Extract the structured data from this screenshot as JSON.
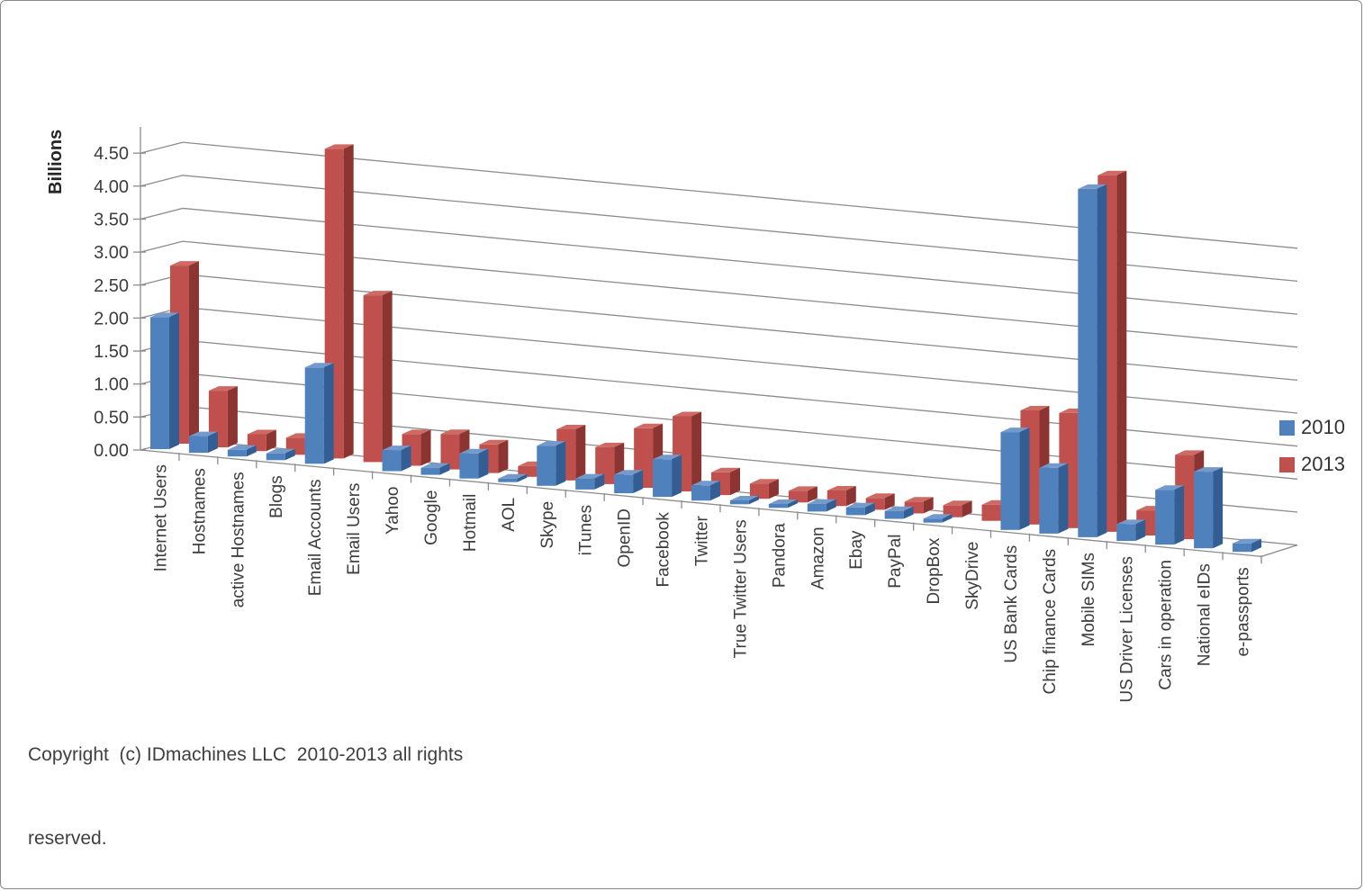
{
  "page": {
    "background": "#ffffff",
    "border_color": "#8a8a8a",
    "grid_color": "#8c8c8c",
    "text_color": "#3d3d3d"
  },
  "chart_data": {
    "type": "bar",
    "variant": "3d-clustered-column",
    "title": "",
    "xlabel": "",
    "ylabel": "Billions",
    "ylim": [
      0,
      4.5
    ],
    "ytick_step": 0.5,
    "ytick_decimals": 2,
    "grid": true,
    "legend_position": "right",
    "categories": [
      "Internet Users",
      "Hostnames",
      "active Hostnames",
      "Blogs",
      "Email Accounts",
      "Email Users",
      "Yahoo",
      "Google",
      "Hotmail",
      "AOL",
      "Skype",
      "iTunes",
      "OpenID",
      "Facebook",
      "Twitter",
      "True Twitter Users",
      "Pandora",
      "Amazon",
      "Ebay",
      "PayPal",
      "DropBox",
      "SkyDrive",
      "US Bank Cards",
      "Chip finance Cards",
      "Mobile SIMs",
      "US Driver Licenses",
      "Cars in operation",
      "National eIDs",
      "e-passports"
    ],
    "series": [
      {
        "name": "2010",
        "color": "#4F81BD",
        "color_side": "#335E93",
        "color_top": "#7499CB",
        "values": [
          2.0,
          0.25,
          0.1,
          0.1,
          1.4,
          0,
          0.3,
          0.1,
          0.35,
          0.05,
          0.55,
          0.15,
          0.25,
          0.5,
          0.2,
          0.05,
          0.05,
          0.1,
          0.1,
          0.1,
          0.05,
          0,
          1.2,
          0.8,
          4.2,
          0.2,
          0.65,
          0.9,
          0.1
        ]
      },
      {
        "name": "2013",
        "color": "#C0504D",
        "color_side": "#8C3431",
        "color_top": "#CD6A64",
        "values": [
          2.7,
          0.85,
          0.25,
          0.25,
          4.5,
          2.4,
          0.45,
          0.5,
          0.4,
          0.15,
          0.7,
          0.5,
          0.8,
          1.0,
          0.3,
          0.2,
          0.15,
          0.2,
          0.15,
          0.15,
          0.15,
          0.2,
          1.4,
          1.4,
          4.3,
          0.3,
          1.0,
          0,
          0
        ]
      }
    ]
  },
  "footer": {
    "copyright_line1": "Copyright  (c) IDmachines LLC  2010-2013 all rights",
    "copyright_line2": "reserved."
  }
}
